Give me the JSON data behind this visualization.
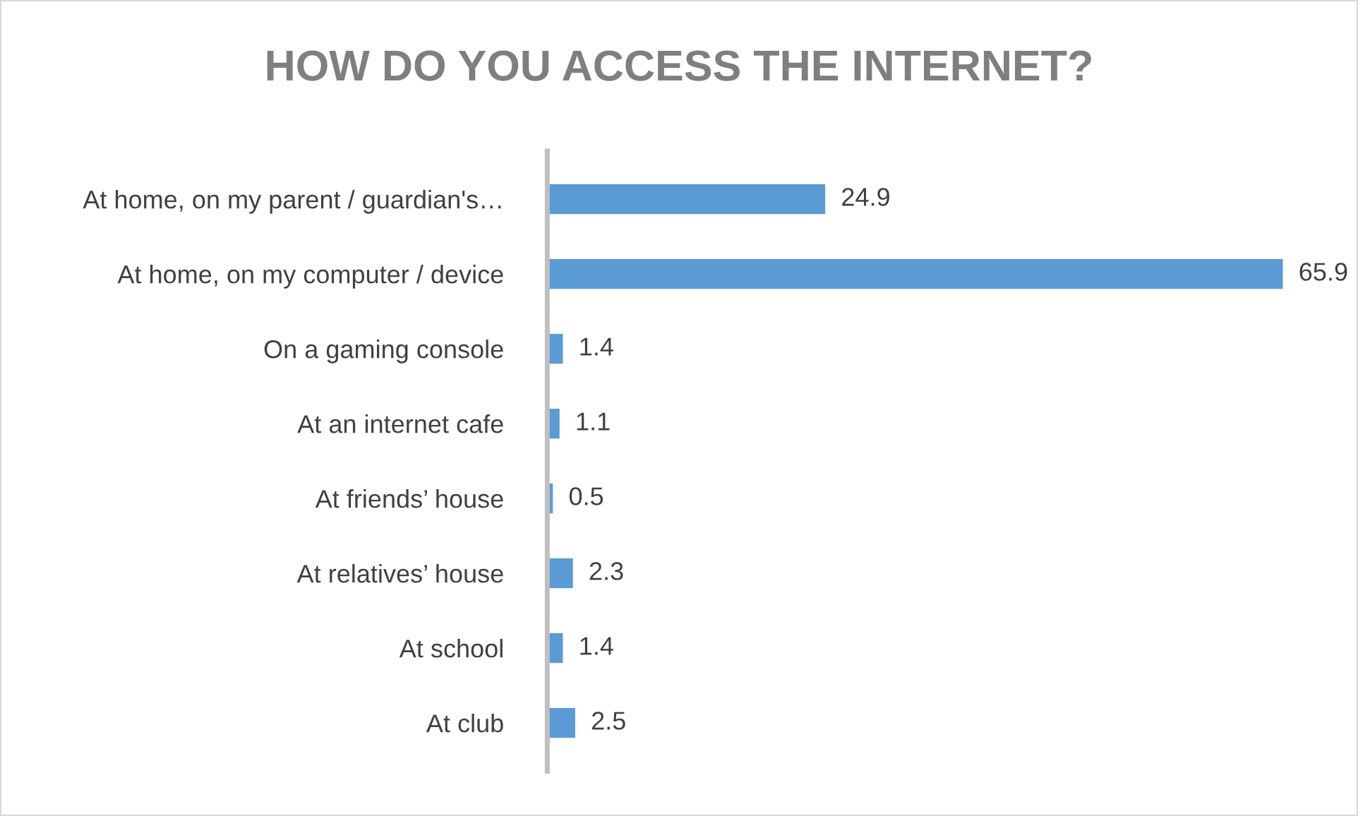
{
  "chart_data": {
    "type": "bar",
    "orientation": "horizontal",
    "title": "HOW DO YOU ACCESS THE INTERNET?",
    "categories": [
      "At home, on my parent / guardian's…",
      "At home, on my computer / device",
      "On a gaming console",
      "At an internet cafe",
      "At friends’ house",
      "At relatives’ house",
      "At school",
      "At club"
    ],
    "values": [
      24.9,
      65.9,
      1.4,
      1.1,
      0.5,
      2.3,
      1.4,
      2.5
    ],
    "color": "#5b9bd5",
    "data_labels": true,
    "grid": false,
    "legend": false
  }
}
